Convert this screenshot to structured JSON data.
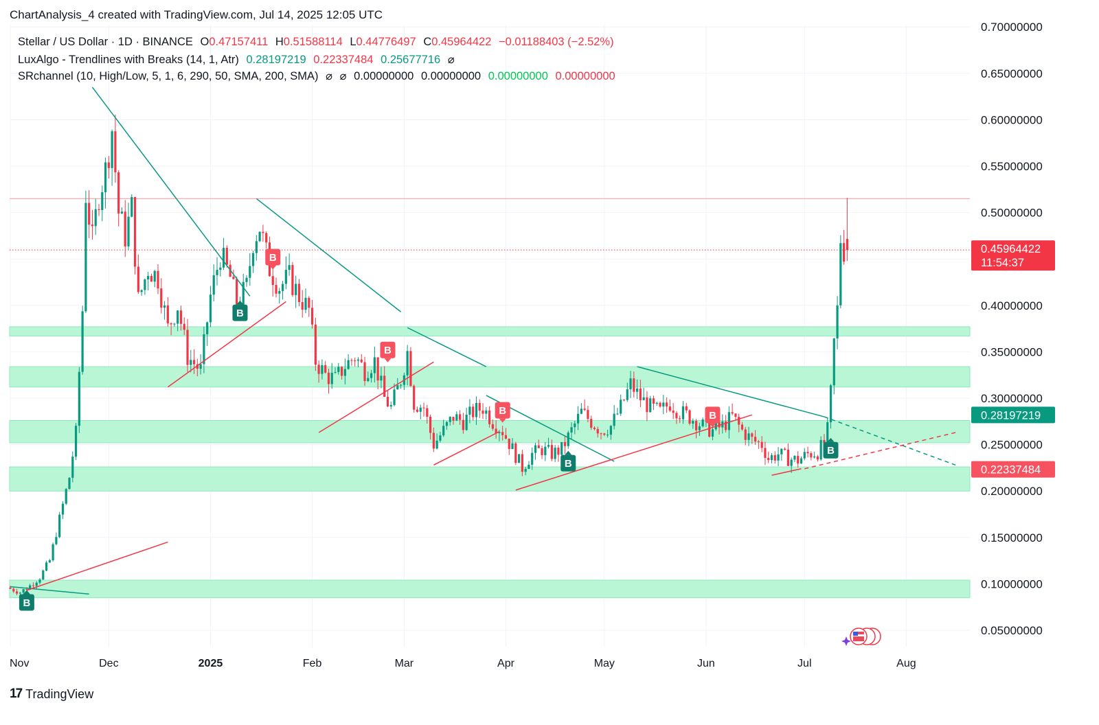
{
  "header": {
    "title": "ChartAnalysis_4 created with TradingView.com, Jul 14, 2025 12:05 UTC"
  },
  "legend": {
    "symbol": "Stellar / US Dollar · 1D · BINANCE",
    "o_label": "O",
    "o_value": "0.47157411",
    "h_label": "H",
    "h_value": "0.51588114",
    "l_label": "L",
    "l_value": "0.44776497",
    "c_label": "C",
    "c_value": "0.45964422",
    "change": "−0.01188403 (−2.52%)",
    "lux_name": "LuxAlgo - Trendlines with Breaks (14, 1, Atr)",
    "lux_v1": "0.28197219",
    "lux_v2": "0.22337484",
    "lux_v3": "0.25677716",
    "sr_name": "SRchannel (10, High/Low, 5, 1, 6, 290, 50, SMA, 200, SMA)",
    "sr_v1": "0.00000000",
    "sr_v2": "0.00000000",
    "sr_v3": "0.00000000",
    "sr_v4": "0.00000000",
    "null_glyph": "⌀"
  },
  "footer": {
    "brand": "TradingView",
    "mark": "17"
  },
  "colors": {
    "up": "#089981",
    "down": "#f23645",
    "zone": "#b9f6d6",
    "zone_border": "#8fe8bc",
    "grid": "#f0f3fa",
    "resistance": "#f7a1a8"
  },
  "chart_data": {
    "type": "candlestick",
    "title": "Stellar / US Dollar · 1D · BINANCE",
    "y_axis": {
      "ticks": [
        0.05,
        0.1,
        0.15,
        0.2,
        0.25,
        0.3,
        0.35,
        0.4,
        0.45,
        0.5,
        0.55,
        0.6,
        0.65,
        0.7
      ],
      "tick_labels": [
        "0.05000000",
        "0.10000000",
        "0.15000000",
        "0.20000000",
        "0.25000000",
        "0.30000000",
        "0.35000000",
        "0.40000000",
        "",
        "0.50000000",
        "0.55000000",
        "0.60000000",
        "0.65000000",
        "0.70000000"
      ],
      "range": [
        0.03,
        0.71
      ]
    },
    "x_axis": {
      "range": [
        "2024-11-01",
        "2025-08-17"
      ],
      "labels": [
        {
          "date": "2024-11-01",
          "text": "Nov"
        },
        {
          "date": "2024-12-01",
          "text": "Dec"
        },
        {
          "date": "2025-01-01",
          "text": "2025",
          "bold": true
        },
        {
          "date": "2025-02-01",
          "text": "Feb"
        },
        {
          "date": "2025-03-01",
          "text": "Mar"
        },
        {
          "date": "2025-04-01",
          "text": "Apr"
        },
        {
          "date": "2025-05-01",
          "text": "May"
        },
        {
          "date": "2025-06-01",
          "text": "Jun"
        },
        {
          "date": "2025-07-01",
          "text": "Jul"
        },
        {
          "date": "2025-08-01",
          "text": "Aug"
        }
      ]
    },
    "price_path": [
      [
        "2024-11-01",
        0.096
      ],
      [
        "2024-11-05",
        0.091
      ],
      [
        "2024-11-08",
        0.098
      ],
      [
        "2024-11-11",
        0.107
      ],
      [
        "2024-11-14",
        0.125
      ],
      [
        "2024-11-17",
        0.17
      ],
      [
        "2024-11-20",
        0.215
      ],
      [
        "2024-11-22",
        0.262
      ],
      [
        "2024-11-24",
        0.395
      ],
      [
        "2024-11-25",
        0.52
      ],
      [
        "2024-11-27",
        0.47
      ],
      [
        "2024-11-29",
        0.52
      ],
      [
        "2024-12-01",
        0.545
      ],
      [
        "2024-12-03",
        0.59
      ],
      [
        "2024-12-05",
        0.5
      ],
      [
        "2024-12-07",
        0.475
      ],
      [
        "2024-12-09",
        0.505
      ],
      [
        "2024-12-11",
        0.405
      ],
      [
        "2024-12-14",
        0.44
      ],
      [
        "2024-12-17",
        0.43
      ],
      [
        "2024-12-20",
        0.375
      ],
      [
        "2024-12-23",
        0.4
      ],
      [
        "2024-12-26",
        0.345
      ],
      [
        "2024-12-30",
        0.33
      ],
      [
        "2025-01-02",
        0.41
      ],
      [
        "2025-01-05",
        0.455
      ],
      [
        "2025-01-08",
        0.43
      ],
      [
        "2025-01-10",
        0.4
      ],
      [
        "2025-01-13",
        0.42
      ],
      [
        "2025-01-15",
        0.47
      ],
      [
        "2025-01-17",
        0.485
      ],
      [
        "2025-01-20",
        0.44
      ],
      [
        "2025-01-23",
        0.42
      ],
      [
        "2025-01-26",
        0.43
      ],
      [
        "2025-01-29",
        0.41
      ],
      [
        "2025-02-01",
        0.395
      ],
      [
        "2025-02-03",
        0.34
      ],
      [
        "2025-02-06",
        0.325
      ],
      [
        "2025-02-09",
        0.32
      ],
      [
        "2025-02-12",
        0.335
      ],
      [
        "2025-02-15",
        0.345
      ],
      [
        "2025-02-18",
        0.33
      ],
      [
        "2025-02-21",
        0.34
      ],
      [
        "2025-02-24",
        0.3
      ],
      [
        "2025-02-26",
        0.29
      ],
      [
        "2025-03-01",
        0.32
      ],
      [
        "2025-03-03",
        0.35
      ],
      [
        "2025-03-05",
        0.295
      ],
      [
        "2025-03-08",
        0.29
      ],
      [
        "2025-03-11",
        0.25
      ],
      [
        "2025-03-14",
        0.265
      ],
      [
        "2025-03-17",
        0.28
      ],
      [
        "2025-03-20",
        0.275
      ],
      [
        "2025-03-23",
        0.285
      ],
      [
        "2025-03-26",
        0.29
      ],
      [
        "2025-03-29",
        0.275
      ],
      [
        "2025-04-01",
        0.265
      ],
      [
        "2025-04-04",
        0.245
      ],
      [
        "2025-04-07",
        0.225
      ],
      [
        "2025-04-10",
        0.24
      ],
      [
        "2025-04-13",
        0.245
      ],
      [
        "2025-04-16",
        0.24
      ],
      [
        "2025-04-19",
        0.245
      ],
      [
        "2025-04-22",
        0.265
      ],
      [
        "2025-04-25",
        0.285
      ],
      [
        "2025-04-28",
        0.275
      ],
      [
        "2025-05-01",
        0.265
      ],
      [
        "2025-05-04",
        0.27
      ],
      [
        "2025-05-07",
        0.29
      ],
      [
        "2025-05-10",
        0.315
      ],
      [
        "2025-05-13",
        0.3
      ],
      [
        "2025-05-16",
        0.29
      ],
      [
        "2025-05-19",
        0.285
      ],
      [
        "2025-05-22",
        0.295
      ],
      [
        "2025-05-25",
        0.285
      ],
      [
        "2025-05-28",
        0.28
      ],
      [
        "2025-06-01",
        0.27
      ],
      [
        "2025-06-04",
        0.265
      ],
      [
        "2025-06-07",
        0.27
      ],
      [
        "2025-06-10",
        0.28
      ],
      [
        "2025-06-13",
        0.265
      ],
      [
        "2025-06-16",
        0.255
      ],
      [
        "2025-06-19",
        0.25
      ],
      [
        "2025-06-21",
        0.235
      ],
      [
        "2025-06-24",
        0.24
      ],
      [
        "2025-06-27",
        0.235
      ],
      [
        "2025-06-30",
        0.233
      ],
      [
        "2025-07-03",
        0.24
      ],
      [
        "2025-07-06",
        0.242
      ],
      [
        "2025-07-08",
        0.252
      ],
      [
        "2025-07-09",
        0.265
      ],
      [
        "2025-07-10",
        0.305
      ],
      [
        "2025-07-11",
        0.36
      ],
      [
        "2025-07-12",
        0.395
      ],
      [
        "2025-07-13",
        0.472
      ],
      [
        "2025-07-14",
        0.46
      ]
    ],
    "last_candle": {
      "date": "2025-07-14",
      "open": 0.47157411,
      "high": 0.51588114,
      "low": 0.44776497,
      "close": 0.45964422
    },
    "support_zones": [
      {
        "low": 0.367,
        "high": 0.377
      },
      {
        "low": 0.312,
        "high": 0.334
      },
      {
        "low": 0.252,
        "high": 0.276
      },
      {
        "low": 0.2,
        "high": 0.226
      },
      {
        "low": 0.085,
        "high": 0.104
      }
    ],
    "resistance_level": 0.515,
    "current_price_line": 0.45964422,
    "trendlines_down": [
      [
        [
          "2024-11-26",
          0.635
        ],
        [
          "2025-01-13",
          0.41
        ]
      ],
      [
        [
          "2025-01-15",
          0.515
        ],
        [
          "2025-02-28",
          0.393
        ]
      ],
      [
        [
          "2025-03-02",
          0.376
        ],
        [
          "2025-03-26",
          0.334
        ]
      ],
      [
        [
          "2025-03-26",
          0.303
        ],
        [
          "2025-05-04",
          0.232
        ]
      ],
      [
        [
          "2025-05-11",
          0.334
        ],
        [
          "2025-07-07",
          0.28
        ]
      ],
      [
        [
          "2024-11-01",
          0.097
        ],
        [
          "2024-11-25",
          0.089
        ]
      ]
    ],
    "trendlines_up": [
      [
        [
          "2024-12-19",
          0.312
        ],
        [
          "2025-01-24",
          0.404
        ]
      ],
      [
        [
          "2025-02-03",
          0.263
        ],
        [
          "2025-03-10",
          0.339
        ]
      ],
      [
        [
          "2025-03-10",
          0.228
        ],
        [
          "2025-03-30",
          0.264
        ]
      ],
      [
        [
          "2025-04-04",
          0.201
        ],
        [
          "2025-06-15",
          0.282
        ]
      ],
      [
        [
          "2025-06-21",
          0.217
        ],
        [
          "2025-06-30",
          0.224
        ]
      ],
      [
        [
          "2024-11-06",
          0.093
        ],
        [
          "2024-12-19",
          0.145
        ]
      ]
    ],
    "projections": [
      {
        "kind": "down",
        "from": [
          "2025-07-07",
          0.28
        ],
        "to": [
          "2025-08-16",
          0.228
        ]
      },
      {
        "kind": "up",
        "from": [
          "2025-07-01",
          0.224
        ],
        "to": [
          "2025-08-16",
          0.263
        ]
      }
    ],
    "break_labels": [
      {
        "date": "2024-11-06",
        "price": 0.08,
        "kind": "up",
        "text": "B"
      },
      {
        "date": "2025-01-10",
        "price": 0.392,
        "kind": "up",
        "text": "B"
      },
      {
        "date": "2025-01-20",
        "price": 0.452,
        "kind": "down",
        "text": "B"
      },
      {
        "date": "2025-02-24",
        "price": 0.352,
        "kind": "down",
        "text": "B"
      },
      {
        "date": "2025-03-31",
        "price": 0.287,
        "kind": "down",
        "text": "B"
      },
      {
        "date": "2025-04-20",
        "price": 0.23,
        "kind": "up",
        "text": "B"
      },
      {
        "date": "2025-06-03",
        "price": 0.282,
        "kind": "down",
        "text": "B"
      },
      {
        "date": "2025-07-09",
        "price": 0.244,
        "kind": "up",
        "text": "B"
      }
    ],
    "price_tags": [
      {
        "price": 0.45964422,
        "label": "0.45964422",
        "sub": "11:54:37",
        "color": "#f23645"
      },
      {
        "price": 0.28197219,
        "label": "0.28197219",
        "color": "#089981"
      },
      {
        "price": 0.22337484,
        "label": "0.22337484",
        "color": "#f7525f"
      }
    ]
  }
}
